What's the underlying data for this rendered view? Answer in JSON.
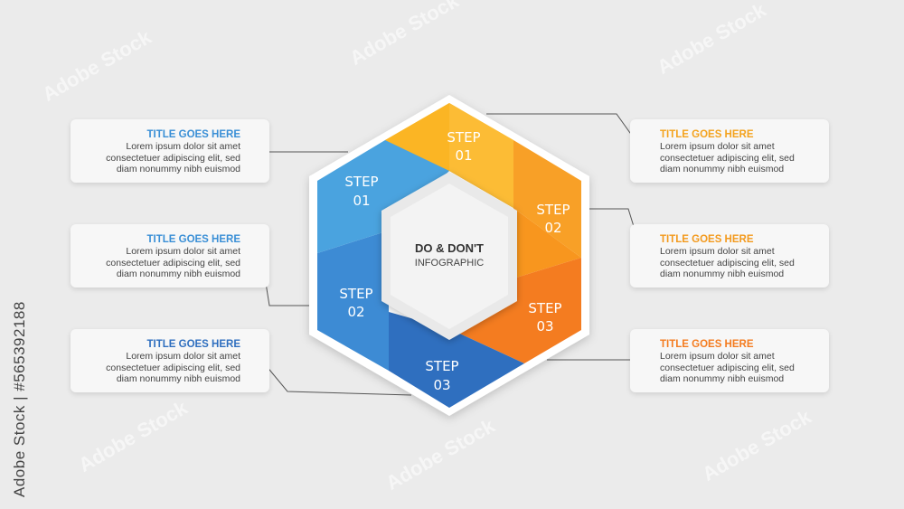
{
  "center": {
    "title": "DO & DON'T",
    "subtitle": "INFOGRAPHIC"
  },
  "colors": {
    "blue_light": "#4aa3df",
    "blue_mid": "#3d8bd4",
    "blue_dark": "#2f6fbf",
    "orange_light": "#fbb524",
    "orange_mid": "#f8961e",
    "orange_dark": "#f47c20",
    "left_title": "#3a8fd6",
    "right_title": "#f39a1e"
  },
  "segments": [
    {
      "label": "STEP",
      "num": "01",
      "side": "blue"
    },
    {
      "label": "STEP",
      "num": "02",
      "side": "blue"
    },
    {
      "label": "STEP",
      "num": "03",
      "side": "blue"
    },
    {
      "label": "STEP",
      "num": "01",
      "side": "orange"
    },
    {
      "label": "STEP",
      "num": "02",
      "side": "orange"
    },
    {
      "label": "STEP",
      "num": "03",
      "side": "orange"
    }
  ],
  "cards": {
    "left": [
      {
        "title": "TITLE GOES HERE",
        "lines": [
          "Lorem ipsum dolor sit amet",
          "consectetuer adipiscing elit, sed",
          "diam nonummy nibh euismod"
        ]
      },
      {
        "title": "TITLE GOES HERE",
        "lines": [
          "Lorem ipsum dolor sit amet",
          "consectetuer adipiscing elit, sed",
          "diam nonummy nibh euismod"
        ]
      },
      {
        "title": "TITLE GOES HERE",
        "lines": [
          "Lorem ipsum dolor sit amet",
          "consectetuer adipiscing elit, sed",
          "diam nonummy nibh euismod"
        ]
      }
    ],
    "right": [
      {
        "title": "TITLE GOES HERE",
        "lines": [
          "Lorem ipsum dolor sit amet",
          "consectetuer adipiscing elit, sed",
          "diam nonummy nibh euismod"
        ]
      },
      {
        "title": "TITLE GOES HERE",
        "lines": [
          "Lorem ipsum dolor sit amet",
          "consectetuer adipiscing elit, sed",
          "diam nonummy nibh euismod"
        ]
      },
      {
        "title": "TITLE GOES HERE",
        "lines": [
          "Lorem ipsum dolor sit amet",
          "consectetuer adipiscing elit, sed",
          "diam nonummy nibh euismod"
        ]
      }
    ]
  },
  "watermark": {
    "side_text": "Adobe Stock | #565392188",
    "logo_text": "Adobe Stock"
  }
}
